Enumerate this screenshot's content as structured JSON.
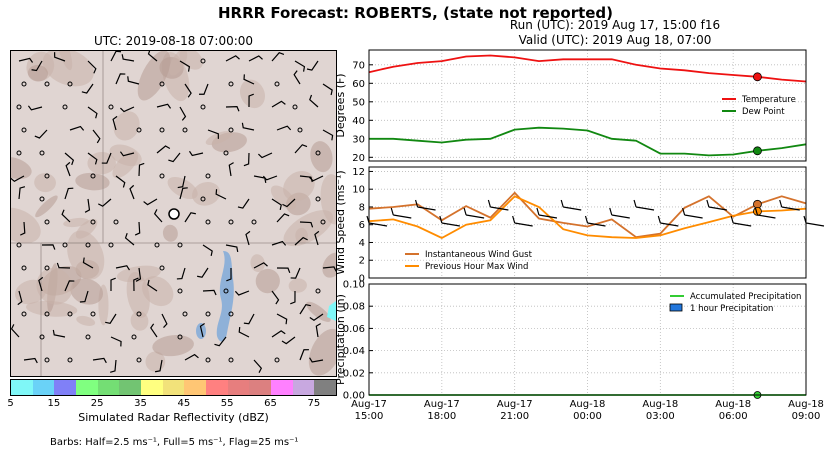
{
  "title": "HRRR Forecast: ROBERTS, (state not reported)",
  "run_text": "Run (UTC): 2019 Aug 17, 15:00 f16",
  "valid_text": "Valid (UTC): 2019 Aug 18, 07:00",
  "map": {
    "title": "UTC: 2019-08-18 07:00:00",
    "colorbar": {
      "label": "Simulated Radar Reflectivity (dBZ)",
      "ticks": [
        "5",
        "15",
        "25",
        "35",
        "45",
        "55",
        "65",
        "75"
      ],
      "colors": [
        "#7ff7f7",
        "#6ad2f7",
        "#8080f7",
        "#80ff80",
        "#74de74",
        "#72c472",
        "#ffff80",
        "#f2e27a",
        "#ffc674",
        "#ff8080",
        "#e77e7e",
        "#dc8080",
        "#ff80ff",
        "#c8a8e0",
        "#808080"
      ]
    },
    "barb_note": "Barbs: Half=2.5 ms⁻¹, Full=5 ms⁻¹, Flag=25 ms⁻¹"
  },
  "chart_data": [
    {
      "type": "line",
      "ylabel": "Degrees (F)",
      "ylim": [
        18,
        78
      ],
      "yticks": [
        "20",
        "30",
        "40",
        "50",
        "60",
        "70"
      ],
      "x_hours": [
        0,
        1,
        2,
        3,
        4,
        5,
        6,
        7,
        8,
        9,
        10,
        11,
        12,
        13,
        14,
        15,
        16,
        17,
        18
      ],
      "series": [
        {
          "name": "Temperature",
          "color": "#ee1111",
          "values": [
            66,
            69,
            71,
            72,
            74.5,
            75,
            74,
            72,
            73,
            73,
            73,
            70,
            68,
            67,
            65.5,
            64.5,
            63.5,
            62,
            61
          ]
        },
        {
          "name": "Dew Point",
          "color": "#118811",
          "values": [
            30,
            30,
            29,
            28,
            29.5,
            30,
            35,
            36,
            35.5,
            34.5,
            30,
            29,
            22,
            22,
            21,
            21.5,
            23.5,
            25,
            27
          ]
        }
      ],
      "legend_position": "right"
    },
    {
      "type": "line",
      "ylabel": "Wind Speed (ms⁻¹)",
      "ylim": [
        0,
        12.5
      ],
      "yticks": [
        "0",
        "2",
        "4",
        "6",
        "8",
        "10",
        "12"
      ],
      "x_hours": [
        0,
        1,
        2,
        3,
        4,
        5,
        6,
        7,
        8,
        9,
        10,
        11,
        12,
        13,
        14,
        15,
        16,
        17,
        18
      ],
      "series": [
        {
          "name": "Instantaneous Wind Gust",
          "color": "#d4722c",
          "values": [
            7.8,
            8.0,
            8.3,
            6.5,
            8.1,
            6.8,
            9.6,
            6.7,
            6.2,
            5.8,
            6.6,
            4.6,
            5.0,
            7.9,
            9.2,
            6.9,
            8.3,
            9.2,
            8.4
          ]
        },
        {
          "name": "Previous Hour Max Wind",
          "color": "#ff8c00",
          "values": [
            6.4,
            6.6,
            5.8,
            4.5,
            6.0,
            6.5,
            9.2,
            8.0,
            5.5,
            4.8,
            4.6,
            4.5,
            4.8,
            5.6,
            6.3,
            7.0,
            7.5,
            7.6,
            7.8
          ]
        }
      ],
      "legend_position": "lower-left"
    },
    {
      "type": "bar",
      "ylabel": "Precipitation (in)",
      "ylim": [
        0,
        0.1
      ],
      "yticks": [
        "0.00",
        "0.02",
        "0.04",
        "0.06",
        "0.08",
        "0.10"
      ],
      "xtick_labels": [
        [
          "Aug-17",
          "15:00"
        ],
        [
          "Aug-17",
          "18:00"
        ],
        [
          "Aug-17",
          "21:00"
        ],
        [
          "Aug-18",
          "00:00"
        ],
        [
          "Aug-18",
          "03:00"
        ],
        [
          "Aug-18",
          "06:00"
        ],
        [
          "Aug-18",
          "09:00"
        ]
      ],
      "series": [
        {
          "name": "Accumulated Precipitation",
          "color": "#33cc33",
          "values": [
            0,
            0,
            0,
            0,
            0,
            0,
            0,
            0,
            0,
            0,
            0,
            0,
            0,
            0,
            0,
            0,
            0,
            0,
            0
          ]
        },
        {
          "name": "1 hour Precipitation",
          "color": "#2277dd",
          "values": [
            0,
            0,
            0,
            0,
            0,
            0,
            0,
            0,
            0,
            0,
            0,
            0,
            0,
            0,
            0,
            0,
            0,
            0,
            0
          ]
        }
      ],
      "legend_position": "upper-right"
    }
  ]
}
